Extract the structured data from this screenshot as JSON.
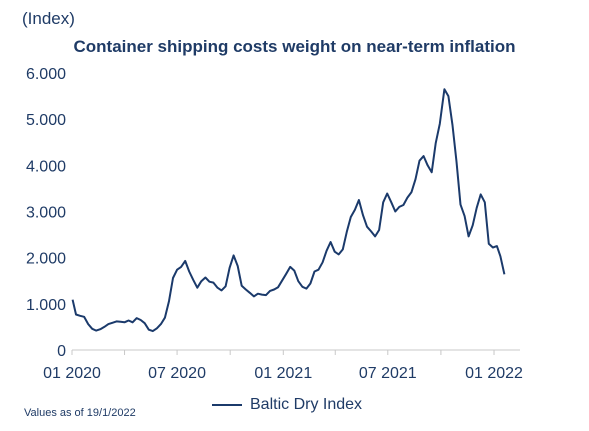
{
  "unit_label": "(Index)",
  "footnote": "Values as of 19/1/2022",
  "colors": {
    "line": "#1b3a6b",
    "text": "#1f3b66",
    "axis": "#c8c8c8"
  },
  "chart_data": {
    "type": "line",
    "title": "Container shipping costs weight on near-term inflation",
    "xlabel": "",
    "ylabel": "",
    "x_ticks": [
      "01 2020",
      "07 2020",
      "01 2021",
      "07 2021",
      "01 2022"
    ],
    "y_ticks": [
      "0",
      "1.000",
      "2.000",
      "3.000",
      "4.000",
      "5.000",
      "6.000"
    ],
    "ylim": [
      0,
      6000
    ],
    "xlim": [
      "2020-01-01",
      "2022-02-15"
    ],
    "grid": false,
    "legend_position": "bottom",
    "series": [
      {
        "name": "Baltic Dry Index",
        "points": [
          [
            "2020-01-02",
            1090
          ],
          [
            "2020-01-08",
            770
          ],
          [
            "2020-01-15",
            740
          ],
          [
            "2020-01-22",
            720
          ],
          [
            "2020-01-29",
            560
          ],
          [
            "2020-02-05",
            460
          ],
          [
            "2020-02-12",
            420
          ],
          [
            "2020-02-19",
            450
          ],
          [
            "2020-02-26",
            500
          ],
          [
            "2020-03-04",
            560
          ],
          [
            "2020-03-11",
            590
          ],
          [
            "2020-03-18",
            620
          ],
          [
            "2020-03-25",
            610
          ],
          [
            "2020-04-01",
            600
          ],
          [
            "2020-04-08",
            640
          ],
          [
            "2020-04-15",
            600
          ],
          [
            "2020-04-22",
            690
          ],
          [
            "2020-04-29",
            650
          ],
          [
            "2020-05-06",
            580
          ],
          [
            "2020-05-13",
            440
          ],
          [
            "2020-05-20",
            410
          ],
          [
            "2020-05-27",
            470
          ],
          [
            "2020-06-03",
            560
          ],
          [
            "2020-06-10",
            700
          ],
          [
            "2020-06-17",
            1060
          ],
          [
            "2020-06-24",
            1560
          ],
          [
            "2020-07-01",
            1740
          ],
          [
            "2020-07-08",
            1800
          ],
          [
            "2020-07-15",
            1930
          ],
          [
            "2020-07-22",
            1700
          ],
          [
            "2020-07-29",
            1520
          ],
          [
            "2020-08-05",
            1350
          ],
          [
            "2020-08-12",
            1490
          ],
          [
            "2020-08-19",
            1570
          ],
          [
            "2020-08-26",
            1480
          ],
          [
            "2020-09-02",
            1460
          ],
          [
            "2020-09-09",
            1350
          ],
          [
            "2020-09-16",
            1290
          ],
          [
            "2020-09-23",
            1380
          ],
          [
            "2020-09-30",
            1780
          ],
          [
            "2020-10-07",
            2050
          ],
          [
            "2020-10-14",
            1820
          ],
          [
            "2020-10-21",
            1390
          ],
          [
            "2020-10-28",
            1310
          ],
          [
            "2020-11-04",
            1240
          ],
          [
            "2020-11-11",
            1160
          ],
          [
            "2020-11-18",
            1220
          ],
          [
            "2020-11-25",
            1200
          ],
          [
            "2020-12-02",
            1190
          ],
          [
            "2020-12-09",
            1280
          ],
          [
            "2020-12-16",
            1310
          ],
          [
            "2020-12-23",
            1360
          ],
          [
            "2021-01-06",
            1650
          ],
          [
            "2021-01-13",
            1800
          ],
          [
            "2021-01-20",
            1720
          ],
          [
            "2021-01-27",
            1490
          ],
          [
            "2021-02-03",
            1370
          ],
          [
            "2021-02-10",
            1330
          ],
          [
            "2021-02-17",
            1440
          ],
          [
            "2021-02-24",
            1700
          ],
          [
            "2021-03-03",
            1740
          ],
          [
            "2021-03-10",
            1900
          ],
          [
            "2021-03-17",
            2150
          ],
          [
            "2021-03-24",
            2340
          ],
          [
            "2021-03-31",
            2130
          ],
          [
            "2021-04-07",
            2070
          ],
          [
            "2021-04-14",
            2180
          ],
          [
            "2021-04-21",
            2560
          ],
          [
            "2021-04-28",
            2880
          ],
          [
            "2021-05-05",
            3040
          ],
          [
            "2021-05-12",
            3250
          ],
          [
            "2021-05-19",
            2920
          ],
          [
            "2021-05-26",
            2670
          ],
          [
            "2021-06-02",
            2570
          ],
          [
            "2021-06-09",
            2460
          ],
          [
            "2021-06-16",
            2600
          ],
          [
            "2021-06-23",
            3200
          ],
          [
            "2021-06-30",
            3390
          ],
          [
            "2021-07-07",
            3200
          ],
          [
            "2021-07-14",
            3000
          ],
          [
            "2021-07-21",
            3100
          ],
          [
            "2021-07-28",
            3140
          ],
          [
            "2021-08-04",
            3300
          ],
          [
            "2021-08-11",
            3420
          ],
          [
            "2021-08-18",
            3700
          ],
          [
            "2021-08-25",
            4100
          ],
          [
            "2021-09-01",
            4200
          ],
          [
            "2021-09-08",
            4000
          ],
          [
            "2021-09-15",
            3850
          ],
          [
            "2021-09-22",
            4480
          ],
          [
            "2021-09-29",
            4900
          ],
          [
            "2021-10-07",
            5650
          ],
          [
            "2021-10-14",
            5500
          ],
          [
            "2021-10-21",
            4870
          ],
          [
            "2021-10-28",
            4080
          ],
          [
            "2021-11-04",
            3150
          ],
          [
            "2021-11-11",
            2900
          ],
          [
            "2021-11-18",
            2460
          ],
          [
            "2021-11-25",
            2700
          ],
          [
            "2021-12-02",
            3080
          ],
          [
            "2021-12-09",
            3370
          ],
          [
            "2021-12-16",
            3200
          ],
          [
            "2021-12-23",
            2300
          ],
          [
            "2021-12-30",
            2220
          ],
          [
            "2022-01-06",
            2250
          ],
          [
            "2022-01-12",
            2030
          ],
          [
            "2022-01-19",
            1640
          ]
        ]
      }
    ]
  }
}
